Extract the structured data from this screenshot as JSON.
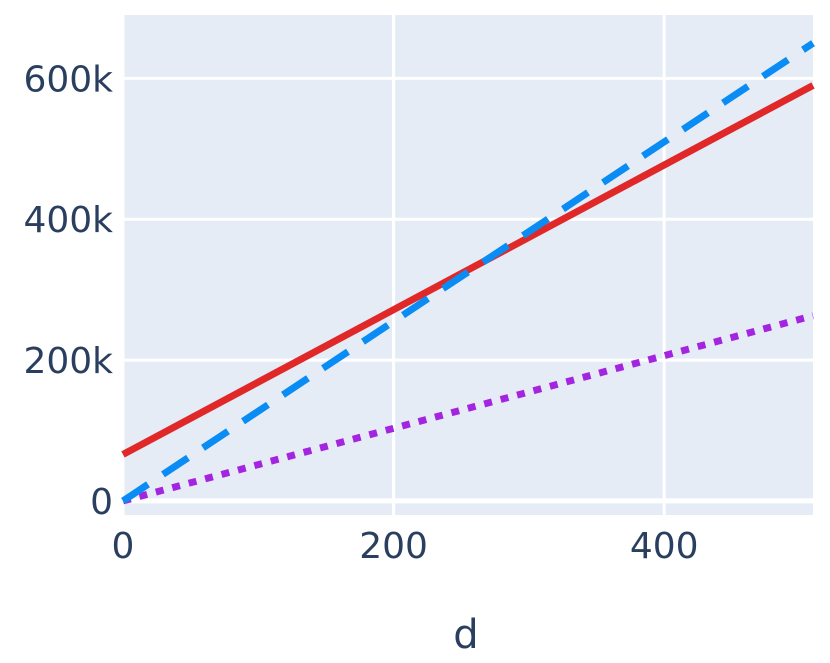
{
  "chart_data": {
    "type": "line",
    "title": "",
    "xlabel": "d",
    "ylabel": "",
    "xlim": [
      0,
      510
    ],
    "ylim": [
      -20000,
      690000
    ],
    "x_ticks": [
      0,
      200,
      400
    ],
    "x_tick_labels": [
      "0",
      "200",
      "400"
    ],
    "y_ticks": [
      0,
      200000,
      400000,
      600000
    ],
    "y_tick_labels": [
      "0",
      "200k",
      "400k",
      "600k"
    ],
    "grid": true,
    "legend": "none",
    "series": [
      {
        "x": [
          0,
          510
        ],
        "y": [
          66000,
          590000
        ],
        "color": "#e02828",
        "dash": "solid"
      },
      {
        "x": [
          0,
          510
        ],
        "y": [
          0,
          650000
        ],
        "color": "#0a8cf5",
        "dash": "dash"
      },
      {
        "x": [
          0,
          510
        ],
        "y": [
          0,
          263000
        ],
        "color": "#a425e0",
        "dash": "dot"
      }
    ],
    "colors": {
      "plot_bg": "#e5ecf6",
      "grid": "#ffffff",
      "text": "#2a3f5f"
    }
  }
}
